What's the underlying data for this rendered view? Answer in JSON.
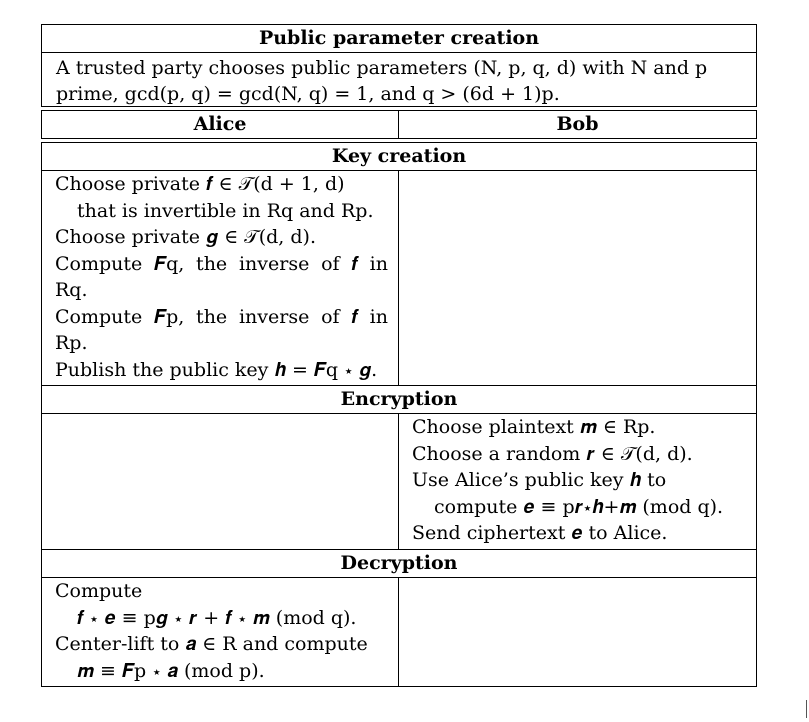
{
  "public": {
    "title": "Public parameter creation",
    "text_line1": "A trusted party chooses public parameters (N, p, q, d) with N and p",
    "text_line2": "prime, gcd(p, q) = gcd(N, q) = 1, and q > (6d + 1)p."
  },
  "parties": {
    "alice": "Alice",
    "bob": "Bob"
  },
  "key_creation": {
    "title": "Key creation",
    "alice_lines": [
      "Choose private 𝒇 ∈ 𝒯(d + 1, d)",
      "that is invertible in Rq and Rp.",
      "Choose private 𝒈 ∈ 𝒯(d, d).",
      "Compute 𝑭q, the inverse of 𝒇 in",
      "Rq.",
      "Compute 𝑭p, the inverse of 𝒇 in",
      "Rp.",
      "Publish the public key 𝒉 = 𝑭q ⋆ 𝒈."
    ]
  },
  "encryption": {
    "title": "Encryption",
    "bob_lines": [
      "Choose plaintext 𝒎 ∈ Rp.",
      "Choose a random 𝒓 ∈ 𝒯(d, d).",
      "Use Alice’s public key 𝒉 to",
      "compute 𝒆 ≡ p𝒓⋆𝒉+𝒎 (mod q).",
      "Send ciphertext 𝒆 to Alice."
    ]
  },
  "decryption": {
    "title": "Decryption",
    "alice_lines": [
      "Compute",
      "𝒇 ⋆ 𝒆 ≡ p𝒈 ⋆ 𝒓 + 𝒇 ⋆ 𝒎 (mod q).",
      "Center-lift to 𝒂 ∈ R and compute",
      "𝒎 ≡ 𝑭p ⋆ 𝒂 (mod p)."
    ]
  }
}
